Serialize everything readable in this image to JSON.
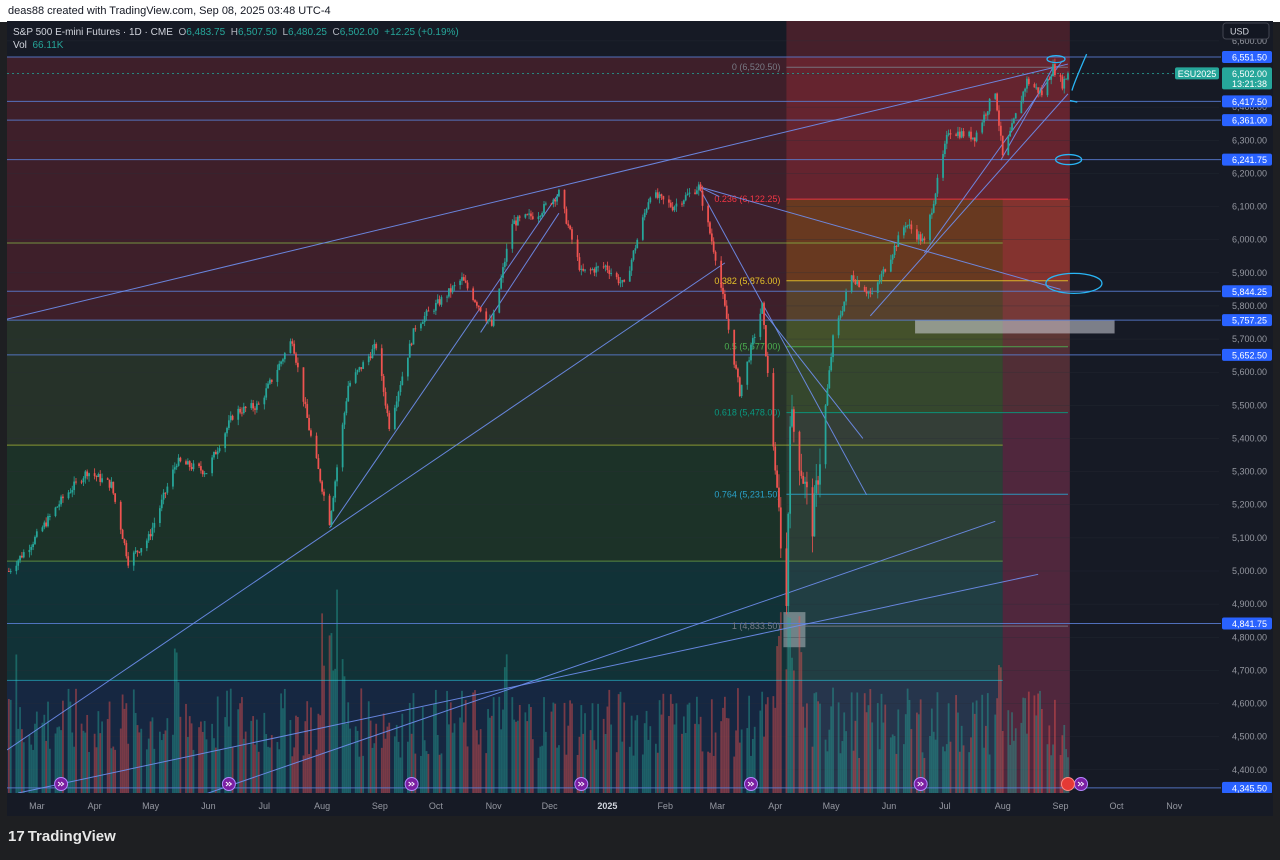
{
  "header": {
    "caption": "deas88 created with TradingView.com, Sep 08, 2025 03:48 UTC-4"
  },
  "legend": {
    "symbol": "S&P 500 E-mini Futures · 1D · CME",
    "o_label": "O",
    "o_value": "6,483.75",
    "h_label": "H",
    "h_value": "6,507.50",
    "l_label": "L",
    "l_value": "6,480.25",
    "c_label": "C",
    "c_value": "6,502.00",
    "change": "+12.25 (+0.19%)",
    "vol_label": "Vol",
    "vol_value": "66.11K"
  },
  "currency": "USD",
  "ticker_tag": "ESU2025",
  "countdown": "13:21:38",
  "footer": {
    "brand": "TradingView"
  },
  "colors": {
    "up": "#26a69a",
    "down": "#ef5350",
    "hline": "#5b7fd6",
    "trend": "#6f8ff0",
    "fib_zero": "#787b86",
    "fib_236": "#f23645",
    "fib_382": "#e6c229",
    "fib_50": "#4caf50",
    "fib_618": "#089981",
    "fib_764": "#2aa1c9",
    "fib_1": "#787b86",
    "label_bg": "#2962ff",
    "drawing": "#29b6f6"
  },
  "chart_data": {
    "type": "candlestick",
    "title": "S&P 500 E-mini Futures · 1D · CME",
    "ylim": [
      4330,
      6660
    ],
    "y_ticks": [
      4400,
      4500,
      4600,
      4700,
      4800,
      4900,
      5000,
      5100,
      5200,
      5300,
      5400,
      5500,
      5600,
      5700,
      5800,
      5900,
      6000,
      6100,
      6200,
      6300,
      6400,
      6500,
      6600
    ],
    "y_tick_labels": [
      "4,400.00",
      "4,500.00",
      "4,600.00",
      "4,700.00",
      "4,800.00",
      "4,900.00",
      "5,000.00",
      "5,100.00",
      "5,200.00",
      "5,300.00",
      "5,400.00",
      "5,500.00",
      "5,600.00",
      "5,700.00",
      "5,800.00",
      "5,900.00",
      "6,000.00",
      "6,100.00",
      "6,200.00",
      "6,300.00",
      "6,400.00",
      "6,500.00",
      "6,600.00"
    ],
    "x_ticks": [
      "Mar",
      "Apr",
      "May",
      "Jun",
      "Jul",
      "Aug",
      "Sep",
      "Oct",
      "Nov",
      "Dec",
      "2025",
      "Feb",
      "Mar",
      "Apr",
      "May",
      "Jun",
      "Jul",
      "Aug",
      "Sep",
      "Oct",
      "Nov"
    ],
    "x_tick_dates": [
      "2024-03-01",
      "2024-04-01",
      "2024-05-01",
      "2024-06-01",
      "2024-07-01",
      "2024-08-01",
      "2024-09-01",
      "2024-10-01",
      "2024-11-01",
      "2024-12-01",
      "2025-01-01",
      "2025-02-01",
      "2025-03-01",
      "2025-04-01",
      "2025-05-01",
      "2025-06-01",
      "2025-07-01",
      "2025-08-01",
      "2025-09-01",
      "2025-10-01",
      "2025-11-01"
    ],
    "xlim": [
      "2024-02-14",
      "2025-11-25"
    ],
    "price_anchors": [
      [
        "2024-02-15",
        5000
      ],
      [
        "2024-02-28",
        5090
      ],
      [
        "2024-03-15",
        5220
      ],
      [
        "2024-03-28",
        5300
      ],
      [
        "2024-04-10",
        5260
      ],
      [
        "2024-04-19",
        5030
      ],
      [
        "2024-04-30",
        5100
      ],
      [
        "2024-05-15",
        5330
      ],
      [
        "2024-05-31",
        5300
      ],
      [
        "2024-06-15",
        5480
      ],
      [
        "2024-06-28",
        5500
      ],
      [
        "2024-07-16",
        5700
      ],
      [
        "2024-07-25",
        5430
      ],
      [
        "2024-08-05",
        5150
      ],
      [
        "2024-08-15",
        5560
      ],
      [
        "2024-08-30",
        5680
      ],
      [
        "2024-09-06",
        5440
      ],
      [
        "2024-09-20",
        5740
      ],
      [
        "2024-10-15",
        5880
      ],
      [
        "2024-10-31",
        5740
      ],
      [
        "2024-11-11",
        6050
      ],
      [
        "2024-11-25",
        6080
      ],
      [
        "2024-12-06",
        6140
      ],
      [
        "2024-12-18",
        5900
      ],
      [
        "2024-12-31",
        5920
      ],
      [
        "2025-01-10",
        5860
      ],
      [
        "2025-01-24",
        6140
      ],
      [
        "2025-02-05",
        6100
      ],
      [
        "2025-02-19",
        6160
      ],
      [
        "2025-02-28",
        5950
      ],
      [
        "2025-03-13",
        5540
      ],
      [
        "2025-03-25",
        5800
      ],
      [
        "2025-04-04",
        5100
      ],
      [
        "2025-04-07",
        4890
      ],
      [
        "2025-04-09",
        5480
      ],
      [
        "2025-04-21",
        5140
      ],
      [
        "2025-05-02",
        5700
      ],
      [
        "2025-05-12",
        5890
      ],
      [
        "2025-05-23",
        5830
      ],
      [
        "2025-06-10",
        6050
      ],
      [
        "2025-06-20",
        5990
      ],
      [
        "2025-07-03",
        6330
      ],
      [
        "2025-07-17",
        6310
      ],
      [
        "2025-07-28",
        6450
      ],
      [
        "2025-08-01",
        6250
      ],
      [
        "2025-08-14",
        6480
      ],
      [
        "2025-08-22",
        6440
      ],
      [
        "2025-08-28",
        6520
      ],
      [
        "2025-09-02",
        6470
      ],
      [
        "2025-09-05",
        6502
      ]
    ],
    "last": {
      "open": 6483.75,
      "high": 6507.5,
      "low": 6480.25,
      "close": 6502.0
    },
    "volume_last": "66.11K",
    "horizontal_levels": [
      6551.5,
      6417.5,
      6361.0,
      6241.75,
      5844.25,
      5757.25,
      5652.5,
      4841.75,
      4345.5
    ],
    "horizontal_level_labels": [
      "6,551.50",
      "6,417.50",
      "6,361.00",
      "6,241.75",
      "5,844.25",
      "5,757.25",
      "5,652.50",
      "4,841.75",
      "4,345.50"
    ],
    "current_price": 6502.0,
    "current_price_label": "6,502.00",
    "fibonacci": [
      {
        "ratio": "0",
        "price": 6520.5,
        "label": "0 (6,520.50)"
      },
      {
        "ratio": "0.236",
        "price": 6122.25,
        "label": "0.236 (6,122.25)"
      },
      {
        "ratio": "0.382",
        "price": 5876.0,
        "label": "0.382 (5,876.00)"
      },
      {
        "ratio": "0.5",
        "price": 5677.0,
        "label": "0.5 (5,677.00)"
      },
      {
        "ratio": "0.618",
        "price": 5478.0,
        "label": "0.618 (5,478.00)"
      },
      {
        "ratio": "0.764",
        "price": 5231.5,
        "label": "0.764 (5,231.50)"
      },
      {
        "ratio": "1",
        "price": 4833.5,
        "label": "1 (4,833.50)"
      }
    ]
  }
}
